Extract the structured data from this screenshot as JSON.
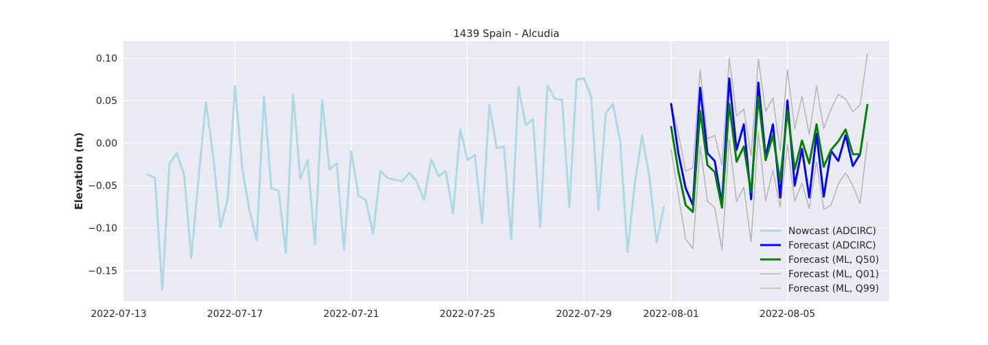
{
  "chart_data": {
    "type": "line",
    "title": "1439 Spain - Alcudia",
    "xlabel": "",
    "ylabel": "Elevation (m)",
    "x_ticks": [
      "2022-07-13",
      "2022-07-17",
      "2022-07-21",
      "2022-07-25",
      "2022-07-29",
      "2022-08-01",
      "2022-08-05"
    ],
    "y_ticks": [
      "0.10",
      "0.05",
      "0.00",
      "−0.05",
      "−0.10",
      "−0.15"
    ],
    "xlim": [
      "2022-07-13T04:00",
      "2022-08-08T12:00"
    ],
    "ylim": [
      -0.186,
      0.12
    ],
    "grid": true,
    "legend_position": "lower-right",
    "series": [
      {
        "name": "Nowcast (ADCIRC)",
        "color": "#add8e6",
        "width": 3,
        "x": [
          "2022-07-14T00:00",
          "2022-07-14T06:00",
          "2022-07-14T12:00",
          "2022-07-14T18:00",
          "2022-07-15T00:00",
          "2022-07-15T06:00",
          "2022-07-15T12:00",
          "2022-07-15T18:00",
          "2022-07-16T00:00",
          "2022-07-16T06:00",
          "2022-07-16T12:00",
          "2022-07-16T18:00",
          "2022-07-17T00:00",
          "2022-07-17T06:00",
          "2022-07-17T12:00",
          "2022-07-17T18:00",
          "2022-07-18T00:00",
          "2022-07-18T06:00",
          "2022-07-18T12:00",
          "2022-07-18T18:00",
          "2022-07-19T00:00",
          "2022-07-19T06:00",
          "2022-07-19T12:00",
          "2022-07-19T18:00",
          "2022-07-20T00:00",
          "2022-07-20T06:00",
          "2022-07-20T12:00",
          "2022-07-20T18:00",
          "2022-07-21T00:00",
          "2022-07-21T06:00",
          "2022-07-21T12:00",
          "2022-07-21T18:00",
          "2022-07-22T00:00",
          "2022-07-22T06:00",
          "2022-07-22T12:00",
          "2022-07-22T18:00",
          "2022-07-23T00:00",
          "2022-07-23T06:00",
          "2022-07-23T12:00",
          "2022-07-23T18:00",
          "2022-07-24T00:00",
          "2022-07-24T06:00",
          "2022-07-24T12:00",
          "2022-07-24T18:00",
          "2022-07-25T00:00",
          "2022-07-25T06:00",
          "2022-07-25T12:00",
          "2022-07-25T18:00",
          "2022-07-26T00:00",
          "2022-07-26T06:00",
          "2022-07-26T12:00",
          "2022-07-26T18:00",
          "2022-07-27T00:00",
          "2022-07-27T06:00",
          "2022-07-27T12:00",
          "2022-07-27T18:00",
          "2022-07-28T00:00",
          "2022-07-28T06:00",
          "2022-07-28T12:00",
          "2022-07-28T18:00",
          "2022-07-29T00:00",
          "2022-07-29T06:00",
          "2022-07-29T12:00",
          "2022-07-29T18:00",
          "2022-07-30T00:00",
          "2022-07-30T06:00",
          "2022-07-30T12:00",
          "2022-07-30T18:00",
          "2022-07-31T00:00",
          "2022-07-31T06:00",
          "2022-07-31T12:00",
          "2022-07-31T18:00"
        ],
        "y": [
          -0.037,
          -0.041,
          -0.173,
          -0.024,
          -0.012,
          -0.037,
          -0.135,
          -0.04,
          0.048,
          -0.015,
          -0.099,
          -0.066,
          0.067,
          -0.03,
          -0.079,
          -0.114,
          0.055,
          -0.053,
          -0.056,
          -0.129,
          0.058,
          -0.042,
          -0.02,
          -0.119,
          0.051,
          -0.031,
          -0.024,
          -0.126,
          -0.01,
          -0.062,
          -0.067,
          -0.107,
          -0.033,
          -0.041,
          -0.043,
          -0.045,
          -0.035,
          -0.045,
          -0.067,
          -0.019,
          -0.039,
          -0.033,
          -0.083,
          0.016,
          -0.02,
          -0.014,
          -0.094,
          0.045,
          -0.006,
          -0.004,
          -0.113,
          0.066,
          0.021,
          0.028,
          -0.099,
          0.068,
          0.052,
          0.051,
          -0.075,
          0.075,
          0.076,
          0.055,
          -0.079,
          0.035,
          0.046,
          0.001,
          -0.128,
          -0.048,
          0.009,
          -0.039,
          -0.117,
          -0.075
        ]
      },
      {
        "name": "Forecast (ADCIRC)",
        "color": "#0000ff",
        "width": 3,
        "x": [
          "2022-08-01T00:00",
          "2022-08-01T06:00",
          "2022-08-01T12:00",
          "2022-08-01T18:00",
          "2022-08-02T00:00",
          "2022-08-02T06:00",
          "2022-08-02T12:00",
          "2022-08-02T18:00",
          "2022-08-03T00:00",
          "2022-08-03T06:00",
          "2022-08-03T12:00",
          "2022-08-03T18:00",
          "2022-08-04T00:00",
          "2022-08-04T06:00",
          "2022-08-04T12:00",
          "2022-08-04T18:00",
          "2022-08-05T00:00",
          "2022-08-05T06:00",
          "2022-08-05T12:00",
          "2022-08-05T18:00",
          "2022-08-06T00:00",
          "2022-08-06T06:00",
          "2022-08-06T12:00",
          "2022-08-06T18:00",
          "2022-08-07T00:00",
          "2022-08-07T06:00",
          "2022-08-07T12:00",
          "2022-08-07T18:00"
        ],
        "y": [
          0.046,
          -0.012,
          -0.053,
          -0.073,
          0.065,
          -0.012,
          -0.021,
          -0.072,
          0.076,
          -0.008,
          0.022,
          -0.066,
          0.071,
          -0.016,
          0.022,
          -0.064,
          0.05,
          -0.05,
          -0.007,
          -0.064,
          0.011,
          -0.063,
          -0.009,
          -0.021,
          0.009,
          -0.027,
          -0.013,
          null
        ]
      },
      {
        "name": "Forecast (ML, Q50)",
        "color": "#008000",
        "width": 3,
        "x": [
          "2022-08-01T00:00",
          "2022-08-01T06:00",
          "2022-08-01T12:00",
          "2022-08-01T18:00",
          "2022-08-02T00:00",
          "2022-08-02T06:00",
          "2022-08-02T12:00",
          "2022-08-02T18:00",
          "2022-08-03T00:00",
          "2022-08-03T06:00",
          "2022-08-03T12:00",
          "2022-08-03T18:00",
          "2022-08-04T00:00",
          "2022-08-04T06:00",
          "2022-08-04T12:00",
          "2022-08-04T18:00",
          "2022-08-05T00:00",
          "2022-08-05T06:00",
          "2022-08-05T12:00",
          "2022-08-05T18:00",
          "2022-08-06T00:00",
          "2022-08-06T06:00",
          "2022-08-06T12:00",
          "2022-08-06T18:00",
          "2022-08-07T00:00",
          "2022-08-07T06:00",
          "2022-08-07T12:00",
          "2022-08-07T18:00"
        ],
        "y": [
          0.019,
          -0.033,
          -0.073,
          -0.081,
          0.038,
          -0.026,
          -0.034,
          -0.076,
          0.046,
          -0.022,
          -0.004,
          -0.058,
          0.054,
          -0.02,
          0.009,
          -0.045,
          0.038,
          -0.031,
          0.003,
          -0.024,
          0.022,
          -0.028,
          -0.008,
          0.002,
          0.016,
          -0.013,
          -0.013,
          0.045
        ]
      },
      {
        "name": "Forecast (ML, Q01)",
        "color": "#b4b4b4",
        "width": 1.5,
        "x": [
          "2022-08-01T00:00",
          "2022-08-01T06:00",
          "2022-08-01T12:00",
          "2022-08-01T18:00",
          "2022-08-02T00:00",
          "2022-08-02T06:00",
          "2022-08-02T12:00",
          "2022-08-02T18:00",
          "2022-08-03T00:00",
          "2022-08-03T06:00",
          "2022-08-03T12:00",
          "2022-08-03T18:00",
          "2022-08-04T00:00",
          "2022-08-04T06:00",
          "2022-08-04T12:00",
          "2022-08-04T18:00",
          "2022-08-05T00:00",
          "2022-08-05T06:00",
          "2022-08-05T12:00",
          "2022-08-05T18:00",
          "2022-08-06T00:00",
          "2022-08-06T06:00",
          "2022-08-06T12:00",
          "2022-08-06T18:00",
          "2022-08-07T00:00",
          "2022-08-07T06:00",
          "2022-08-07T12:00",
          "2022-08-07T18:00"
        ],
        "y": [
          -0.008,
          -0.061,
          -0.113,
          -0.124,
          -0.004,
          -0.068,
          -0.076,
          -0.126,
          0.004,
          -0.069,
          -0.052,
          -0.116,
          0.013,
          -0.068,
          -0.032,
          -0.075,
          -0.002,
          -0.068,
          -0.047,
          -0.077,
          -0.022,
          -0.078,
          -0.073,
          -0.048,
          -0.035,
          -0.05,
          -0.071,
          0.001
        ]
      },
      {
        "name": "Forecast (ML, Q99)",
        "color": "#b4b4b4",
        "width": 1.5,
        "x": [
          "2022-08-01T00:00",
          "2022-08-01T06:00",
          "2022-08-01T12:00",
          "2022-08-01T18:00",
          "2022-08-02T00:00",
          "2022-08-02T06:00",
          "2022-08-02T12:00",
          "2022-08-02T18:00",
          "2022-08-03T00:00",
          "2022-08-03T06:00",
          "2022-08-03T12:00",
          "2022-08-03T18:00",
          "2022-08-04T00:00",
          "2022-08-04T06:00",
          "2022-08-04T12:00",
          "2022-08-04T18:00",
          "2022-08-05T00:00",
          "2022-08-05T06:00",
          "2022-08-05T12:00",
          "2022-08-05T18:00",
          "2022-08-06T00:00",
          "2022-08-06T06:00",
          "2022-08-06T12:00",
          "2022-08-06T18:00",
          "2022-08-07T00:00",
          "2022-08-07T06:00",
          "2022-08-07T12:00",
          "2022-08-07T18:00"
        ],
        "y": [
          0.047,
          0.011,
          -0.033,
          -0.029,
          0.086,
          0.005,
          0.009,
          -0.026,
          0.1,
          0.032,
          0.04,
          -0.015,
          0.099,
          0.037,
          0.053,
          -0.009,
          0.086,
          0.017,
          0.055,
          0.01,
          0.067,
          0.017,
          0.04,
          0.057,
          0.052,
          0.037,
          0.045,
          0.105
        ]
      }
    ]
  }
}
